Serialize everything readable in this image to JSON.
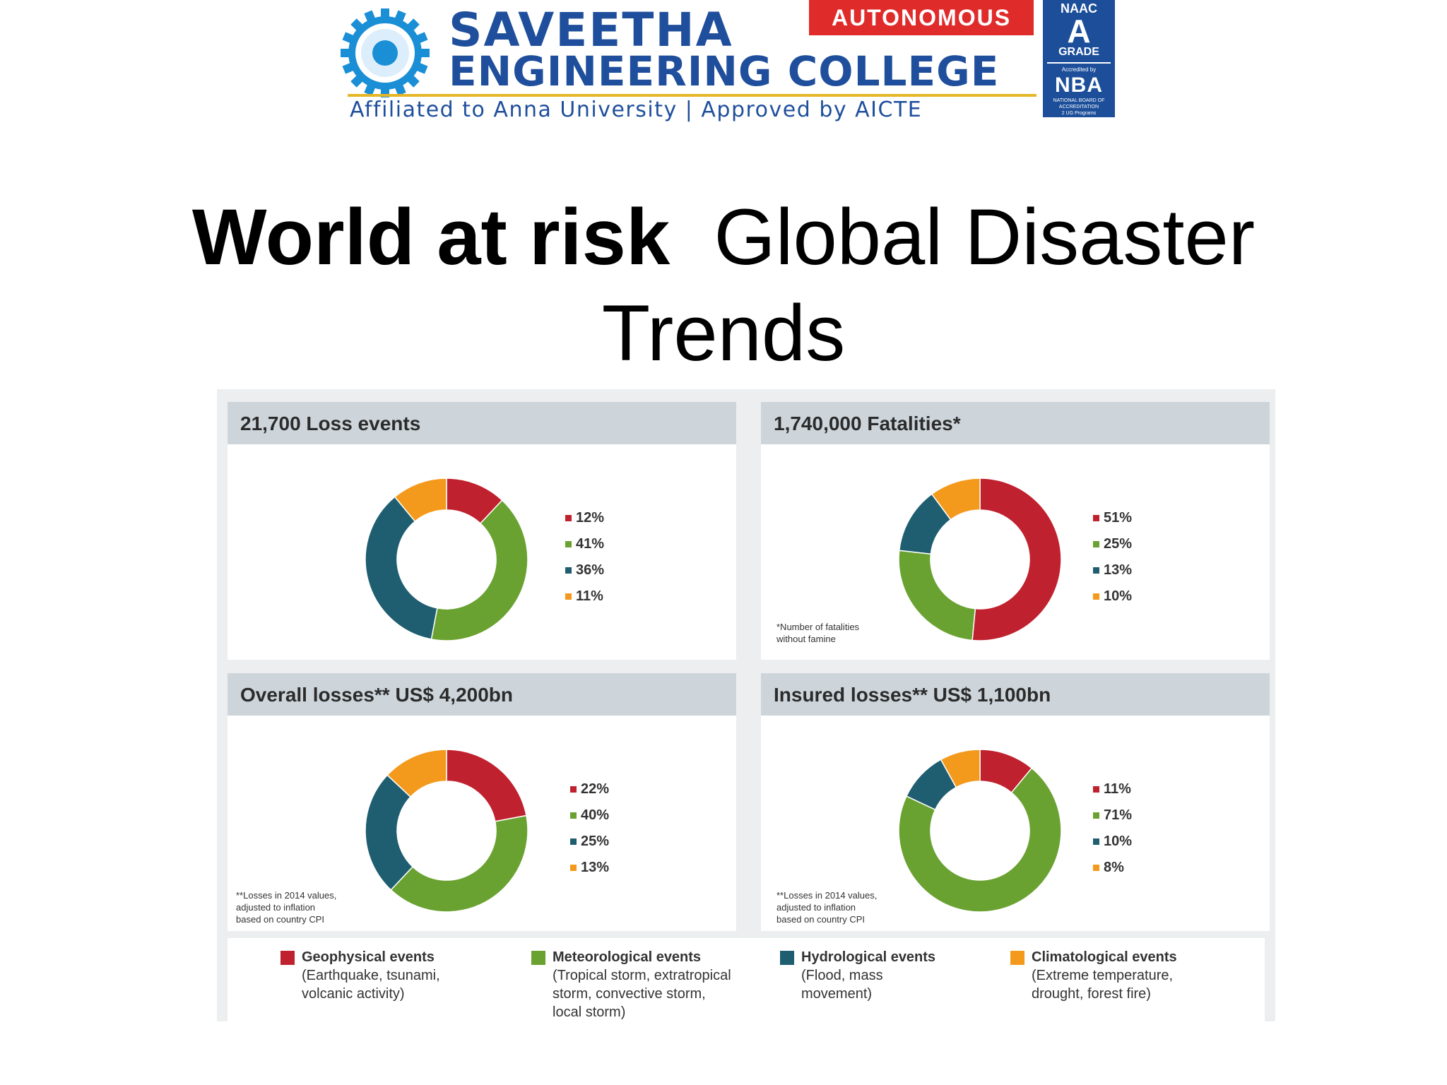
{
  "header": {
    "college_line1": "SAVEETHA",
    "college_line2": "ENGINEERING COLLEGE",
    "college_sub": "Affiliated to Anna University | Approved by AICTE",
    "autonomous": "AUTONOMOUS",
    "badge": {
      "naac": "NAAC",
      "grade_letter": "A",
      "grade": "GRADE",
      "accredited": "Accredited by",
      "nba": "NBA",
      "nba_sub": "NATIONAL BOARD OF ACCREDITATION",
      "programs": "2 UG Programs"
    },
    "gear_color": "#1a8fd6"
  },
  "title": {
    "bold": "World at risk",
    "regular_line1": "Global Disaster",
    "regular_line2": "Trends"
  },
  "colors": {
    "geophysical": "#c0212e",
    "meteorological": "#6aa232",
    "hydrological": "#1f5e70",
    "climatological": "#f39a1d"
  },
  "chart_data": [
    {
      "type": "pie",
      "title": "21,700 Loss events",
      "categories": [
        "Geophysical events",
        "Meteorological events",
        "Hydrological events",
        "Climatological events"
      ],
      "values": [
        12,
        41,
        36,
        11
      ],
      "labels": [
        "12%",
        "41%",
        "36%",
        "11%"
      ],
      "footnote": ""
    },
    {
      "type": "pie",
      "title": "1,740,000 Fatalities*",
      "categories": [
        "Geophysical events",
        "Meteorological events",
        "Hydrological events",
        "Climatological events"
      ],
      "values": [
        51,
        25,
        13,
        10
      ],
      "labels": [
        "51%",
        "25%",
        "13%",
        "10%"
      ],
      "footnote": "*Number of fatalities\nwithout famine"
    },
    {
      "type": "pie",
      "title": "Overall losses** US$ 4,200bn",
      "categories": [
        "Geophysical events",
        "Meteorological events",
        "Hydrological events",
        "Climatological events"
      ],
      "values": [
        22,
        40,
        25,
        13
      ],
      "labels": [
        "22%",
        "40%",
        "25%",
        "13%"
      ],
      "footnote": "**Losses in 2014 values,\nadjusted to inflation\nbased on country CPI"
    },
    {
      "type": "pie",
      "title": "Insured losses** US$ 1,100bn",
      "categories": [
        "Geophysical events",
        "Meteorological events",
        "Hydrological events",
        "Climatological events"
      ],
      "values": [
        11,
        71,
        10,
        8
      ],
      "labels": [
        "11%",
        "71%",
        "10%",
        "8%"
      ],
      "footnote": "**Losses in 2014 values,\nadjusted to inflation\nbased on country CPI"
    }
  ],
  "legend": [
    {
      "name": "Geophysical events",
      "desc": "(Earthquake, tsunami,\nvolcanic activity)"
    },
    {
      "name": "Meteorological events",
      "desc": "(Tropical storm, extratropical\nstorm, convective storm,\nlocal storm)"
    },
    {
      "name": "Hydrological events",
      "desc": "(Flood, mass\nmovement)"
    },
    {
      "name": "Climatological events",
      "desc": "(Extreme temperature,\ndrought, forest fire)"
    }
  ]
}
